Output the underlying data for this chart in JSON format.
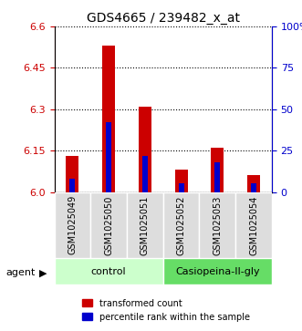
{
  "title": "GDS4665 / 239482_x_at",
  "samples": [
    "GSM1025049",
    "GSM1025050",
    "GSM1025051",
    "GSM1025052",
    "GSM1025053",
    "GSM1025054"
  ],
  "groups": [
    "control",
    "control",
    "control",
    "Casiopeina-II-gly",
    "Casiopeina-II-gly",
    "Casiopeina-II-gly"
  ],
  "red_values": [
    6.13,
    6.53,
    6.31,
    6.08,
    6.16,
    6.06
  ],
  "blue_values_pct": [
    8,
    42,
    22,
    5,
    18,
    5
  ],
  "ylim": [
    6.0,
    6.6
  ],
  "right_ylim": [
    0,
    100
  ],
  "left_yticks": [
    6.0,
    6.15,
    6.3,
    6.45,
    6.6
  ],
  "right_yticks": [
    0,
    25,
    50,
    75,
    100
  ],
  "left_color": "#cc0000",
  "right_color": "#0000cc",
  "bar_base": 6.0,
  "legend_red": "transformed count",
  "legend_blue": "percentile rank within the sample",
  "group_label": "agent",
  "group_colors": [
    "#ccffcc",
    "#66dd66"
  ],
  "bg_color": "#dddddd"
}
